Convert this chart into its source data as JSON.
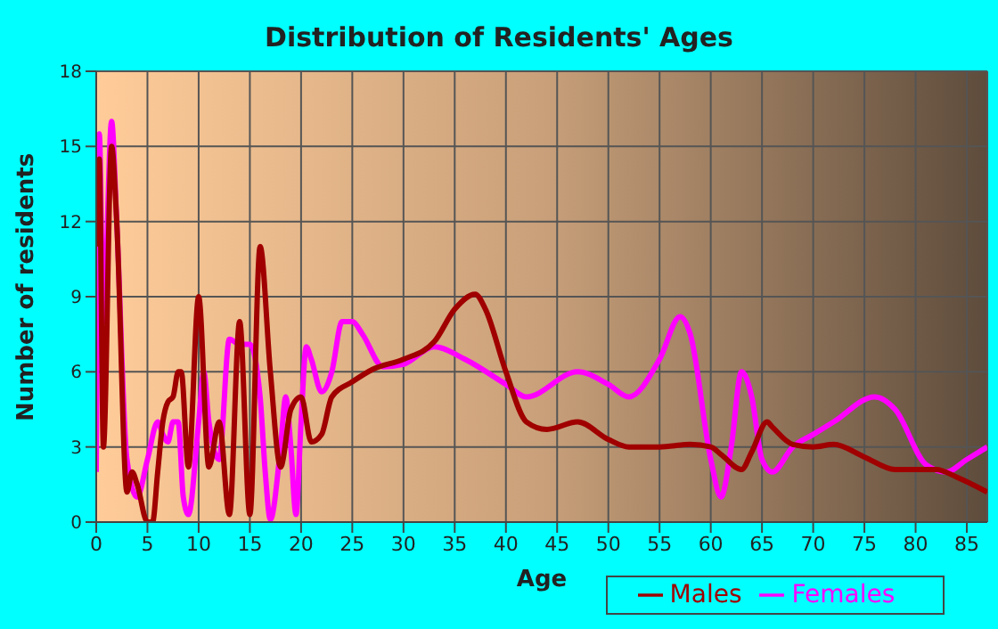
{
  "chart_data": {
    "type": "line",
    "title": "Distribution of Residents' Ages",
    "xlabel": "Age",
    "ylabel": "Number of residents",
    "xlim": [
      0,
      87
    ],
    "xticks": [
      0,
      5,
      10,
      15,
      20,
      25,
      30,
      35,
      40,
      45,
      50,
      55,
      60,
      65,
      70,
      75,
      80,
      85
    ],
    "ylim": [
      0,
      18
    ],
    "yticks": [
      0,
      3,
      6,
      9,
      12,
      15,
      18
    ],
    "grid": true,
    "legend": "bottom",
    "marker": "none",
    "line_style": "solid",
    "series": [
      {
        "name": "Males",
        "color": "#a00000",
        "x": [
          0,
          0.3,
          0.7,
          1.5,
          2,
          3,
          3.5,
          4,
          5,
          5.5,
          6,
          6.5,
          7,
          7.5,
          8,
          8.3,
          9,
          10,
          11,
          12,
          13,
          14,
          15,
          16,
          17,
          18,
          19,
          20,
          21,
          22,
          23,
          25,
          27,
          30,
          33,
          35,
          37,
          38,
          40,
          42,
          44,
          47,
          50,
          52,
          55,
          58,
          60,
          61,
          63,
          64,
          65.5,
          66,
          68,
          70,
          72,
          75,
          78,
          82,
          84,
          87
        ],
        "values": [
          11,
          14.5,
          3,
          15,
          12,
          1.2,
          2,
          1.5,
          0,
          0,
          2,
          4,
          4.8,
          5,
          6,
          6,
          2.2,
          9,
          2.2,
          4,
          0.3,
          8,
          0.3,
          11,
          6,
          2.2,
          4.5,
          5,
          3.2,
          3.5,
          5,
          5.6,
          6.1,
          6.5,
          7.2,
          8.5,
          9.1,
          8.5,
          6,
          4,
          3.7,
          4,
          3.3,
          3,
          3,
          3.1,
          3,
          2.7,
          2.1,
          2.8,
          4,
          3.8,
          3.1,
          3,
          3.1,
          2.6,
          2.1,
          2.1,
          1.8,
          1.2
        ]
      },
      {
        "name": "Females",
        "color": "#ff00ff",
        "x": [
          0,
          0.3,
          0.7,
          1.5,
          2,
          3,
          4,
          5,
          6,
          6.5,
          7,
          7.5,
          8,
          8.5,
          9,
          10,
          10.5,
          11,
          12,
          13,
          14,
          15,
          16,
          16.5,
          17,
          18,
          18.5,
          19,
          19.5,
          20,
          20.5,
          21,
          22,
          23,
          24,
          25,
          26,
          28,
          30,
          33,
          36,
          40,
          42,
          47,
          50,
          52,
          55,
          57,
          58,
          60,
          61,
          62,
          63,
          64,
          65,
          66,
          68,
          70,
          72,
          76,
          78,
          81,
          83,
          85,
          87
        ],
        "values": [
          2,
          15.5,
          8,
          16,
          12,
          2.5,
          1,
          2.5,
          4,
          3.5,
          3.2,
          4,
          4,
          1,
          0.3,
          4,
          6,
          4,
          2.5,
          7.3,
          7.1,
          7.1,
          5,
          2,
          0.1,
          3,
          5,
          3,
          0.3,
          4,
          7,
          6.5,
          5.2,
          6,
          8,
          8,
          7.5,
          6.2,
          6.3,
          7,
          6.5,
          5.5,
          5,
          6,
          5.5,
          5,
          6.5,
          8.2,
          7.5,
          2.5,
          1,
          3,
          6,
          5,
          2.5,
          2,
          3,
          3.5,
          4,
          5,
          4.5,
          2.3,
          2,
          2.5,
          3
        ]
      }
    ]
  }
}
